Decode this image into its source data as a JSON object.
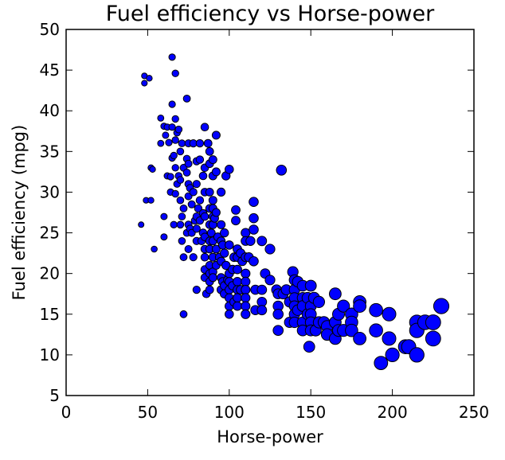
{
  "chart_data": {
    "type": "scatter",
    "title": "Fuel efficiency vs Horse-power",
    "xlabel": "Horse-power",
    "ylabel": "Fuel efficiency (mpg)",
    "xlim": [
      0,
      250
    ],
    "ylim": [
      5,
      50
    ],
    "xticks": [
      0,
      50,
      100,
      150,
      200,
      250
    ],
    "yticks": [
      5,
      10,
      15,
      20,
      25,
      30,
      35,
      40,
      45,
      50
    ],
    "grid": false,
    "legend": "none",
    "marker_color": "#0000ff",
    "marker_edge_color": "#000000",
    "marker_size_note": "marker area grows with horse-power",
    "points": [
      [
        46,
        26
      ],
      [
        48,
        43.4
      ],
      [
        48,
        44.3
      ],
      [
        49,
        29
      ],
      [
        51,
        44
      ],
      [
        52,
        29
      ],
      [
        52,
        33
      ],
      [
        53,
        32.8
      ],
      [
        54,
        23
      ],
      [
        58,
        39.1
      ],
      [
        58,
        36
      ],
      [
        60,
        38.1
      ],
      [
        60,
        27
      ],
      [
        60,
        24.5
      ],
      [
        61,
        37
      ],
      [
        62,
        38
      ],
      [
        62,
        32
      ],
      [
        63,
        36.1
      ],
      [
        64,
        31.9
      ],
      [
        64,
        30
      ],
      [
        65,
        46.6
      ],
      [
        65,
        40.8
      ],
      [
        65,
        38
      ],
      [
        65,
        34.2
      ],
      [
        66,
        34.5
      ],
      [
        66,
        26
      ],
      [
        67,
        44.6
      ],
      [
        67,
        39
      ],
      [
        67,
        36.4
      ],
      [
        67,
        33
      ],
      [
        67,
        29.8
      ],
      [
        68,
        37.3
      ],
      [
        68,
        31
      ],
      [
        69,
        37.7
      ],
      [
        69,
        32
      ],
      [
        70,
        35
      ],
      [
        70,
        31.5
      ],
      [
        70,
        29
      ],
      [
        70,
        26
      ],
      [
        71,
        36
      ],
      [
        71,
        27
      ],
      [
        71,
        24
      ],
      [
        72,
        33
      ],
      [
        72,
        28
      ],
      [
        72,
        22
      ],
      [
        72,
        15
      ],
      [
        74,
        41.5
      ],
      [
        74,
        34.1
      ],
      [
        74,
        32.4
      ],
      [
        74,
        25
      ],
      [
        75,
        36
      ],
      [
        75,
        33.5
      ],
      [
        75,
        31
      ],
      [
        75,
        29.5
      ],
      [
        75,
        26
      ],
      [
        75,
        23
      ],
      [
        76,
        30.5
      ],
      [
        76,
        25.5
      ],
      [
        77,
        28.5
      ],
      [
        77,
        25
      ],
      [
        78,
        36
      ],
      [
        78,
        30
      ],
      [
        78,
        22
      ],
      [
        79,
        26.5
      ],
      [
        80,
        33.8
      ],
      [
        80,
        31
      ],
      [
        80,
        27
      ],
      [
        80,
        25.5
      ],
      [
        80,
        24
      ],
      [
        80,
        18
      ],
      [
        81,
        28
      ],
      [
        82,
        36
      ],
      [
        82,
        34
      ],
      [
        82,
        29
      ],
      [
        82,
        26.5
      ],
      [
        83,
        24
      ],
      [
        84,
        32
      ],
      [
        84,
        27.4
      ],
      [
        84,
        25
      ],
      [
        85,
        38
      ],
      [
        85,
        33
      ],
      [
        85,
        30
      ],
      [
        85,
        27
      ],
      [
        85,
        24.5
      ],
      [
        85,
        23
      ],
      [
        85,
        22
      ],
      [
        85,
        20.5
      ],
      [
        85,
        19.5
      ],
      [
        86,
        17.5
      ],
      [
        87,
        36
      ],
      [
        88,
        35
      ],
      [
        88,
        33.5
      ],
      [
        88,
        30
      ],
      [
        88,
        28
      ],
      [
        88,
        26
      ],
      [
        88,
        24
      ],
      [
        88,
        23
      ],
      [
        88,
        21
      ],
      [
        88,
        20
      ],
      [
        88,
        19
      ],
      [
        88,
        18
      ],
      [
        89,
        25
      ],
      [
        90,
        34
      ],
      [
        90,
        32
      ],
      [
        90,
        29
      ],
      [
        90,
        28
      ],
      [
        90,
        27
      ],
      [
        90,
        26
      ],
      [
        90,
        24
      ],
      [
        90,
        22
      ],
      [
        90,
        20.2
      ],
      [
        90,
        19.5
      ],
      [
        91,
        26.8
      ],
      [
        92,
        37
      ],
      [
        92,
        32.5
      ],
      [
        92,
        27.5
      ],
      [
        92,
        23
      ],
      [
        92,
        21
      ],
      [
        93,
        24.5
      ],
      [
        94,
        22
      ],
      [
        95,
        30
      ],
      [
        95,
        26
      ],
      [
        95,
        24
      ],
      [
        95,
        21.5
      ],
      [
        95,
        19.5
      ],
      [
        95,
        18
      ],
      [
        96,
        23.5
      ],
      [
        96,
        19
      ],
      [
        97,
        25
      ],
      [
        97,
        22.5
      ],
      [
        97,
        18.5
      ],
      [
        97,
        17.5
      ],
      [
        98,
        32
      ],
      [
        98,
        21
      ],
      [
        99,
        19.2
      ],
      [
        100,
        32.8
      ],
      [
        100,
        23.5
      ],
      [
        100,
        20
      ],
      [
        100,
        19
      ],
      [
        100,
        18
      ],
      [
        100,
        17
      ],
      [
        100,
        16
      ],
      [
        100,
        15
      ],
      [
        102,
        20.5
      ],
      [
        102,
        18.5
      ],
      [
        103,
        22
      ],
      [
        103,
        16.5
      ],
      [
        104,
        27.8
      ],
      [
        104,
        26.5
      ],
      [
        105,
        23
      ],
      [
        105,
        22
      ],
      [
        105,
        20.5
      ],
      [
        105,
        19
      ],
      [
        105,
        18
      ],
      [
        105,
        17
      ],
      [
        105,
        16
      ],
      [
        107,
        22.5
      ],
      [
        107,
        18
      ],
      [
        108,
        21.5
      ],
      [
        110,
        25
      ],
      [
        110,
        24
      ],
      [
        110,
        22
      ],
      [
        110,
        20
      ],
      [
        110,
        19
      ],
      [
        110,
        18
      ],
      [
        110,
        17
      ],
      [
        110,
        16
      ],
      [
        110,
        15
      ],
      [
        112,
        22
      ],
      [
        113,
        24
      ],
      [
        115,
        28.8
      ],
      [
        115,
        26.8
      ],
      [
        115,
        25.4
      ],
      [
        115,
        21.5
      ],
      [
        116,
        18
      ],
      [
        116,
        15.5
      ],
      [
        120,
        24
      ],
      [
        120,
        18
      ],
      [
        120,
        16.5
      ],
      [
        120,
        15.5
      ],
      [
        122,
        20
      ],
      [
        125,
        23
      ],
      [
        125,
        19.2
      ],
      [
        129,
        18
      ],
      [
        130,
        17.5
      ],
      [
        130,
        16
      ],
      [
        130,
        15
      ],
      [
        130,
        13
      ],
      [
        132,
        32.7
      ],
      [
        133,
        17.5
      ],
      [
        135,
        18
      ],
      [
        137,
        16.5
      ],
      [
        137,
        14
      ],
      [
        139,
        20.2
      ],
      [
        140,
        19.2
      ],
      [
        140,
        18
      ],
      [
        140,
        17
      ],
      [
        140,
        16
      ],
      [
        140,
        15
      ],
      [
        140,
        14
      ],
      [
        142,
        19
      ],
      [
        142,
        15.5
      ],
      [
        145,
        18.5
      ],
      [
        145,
        17
      ],
      [
        145,
        16
      ],
      [
        145,
        14
      ],
      [
        145,
        13
      ],
      [
        148,
        17
      ],
      [
        148,
        15
      ],
      [
        149,
        11
      ],
      [
        150,
        18.5
      ],
      [
        150,
        16
      ],
      [
        150,
        15
      ],
      [
        150,
        14
      ],
      [
        150,
        13
      ],
      [
        152,
        17
      ],
      [
        153,
        13
      ],
      [
        155,
        16.5
      ],
      [
        155,
        14
      ],
      [
        158,
        14
      ],
      [
        160,
        13.5
      ],
      [
        160,
        12.5
      ],
      [
        165,
        17.5
      ],
      [
        165,
        14
      ],
      [
        165,
        12
      ],
      [
        167,
        15
      ],
      [
        167,
        13
      ],
      [
        170,
        16
      ],
      [
        170,
        13
      ],
      [
        175,
        15
      ],
      [
        175,
        14
      ],
      [
        175,
        13
      ],
      [
        180,
        16.5
      ],
      [
        180,
        16
      ],
      [
        180,
        12
      ],
      [
        190,
        15.5
      ],
      [
        190,
        13
      ],
      [
        193,
        9
      ],
      [
        198,
        15
      ],
      [
        198,
        12
      ],
      [
        200,
        10
      ],
      [
        208,
        11
      ],
      [
        210,
        11
      ],
      [
        215,
        14
      ],
      [
        215,
        13
      ],
      [
        215,
        10
      ],
      [
        220,
        14
      ],
      [
        225,
        14
      ],
      [
        225,
        12
      ],
      [
        230,
        16
      ]
    ]
  }
}
